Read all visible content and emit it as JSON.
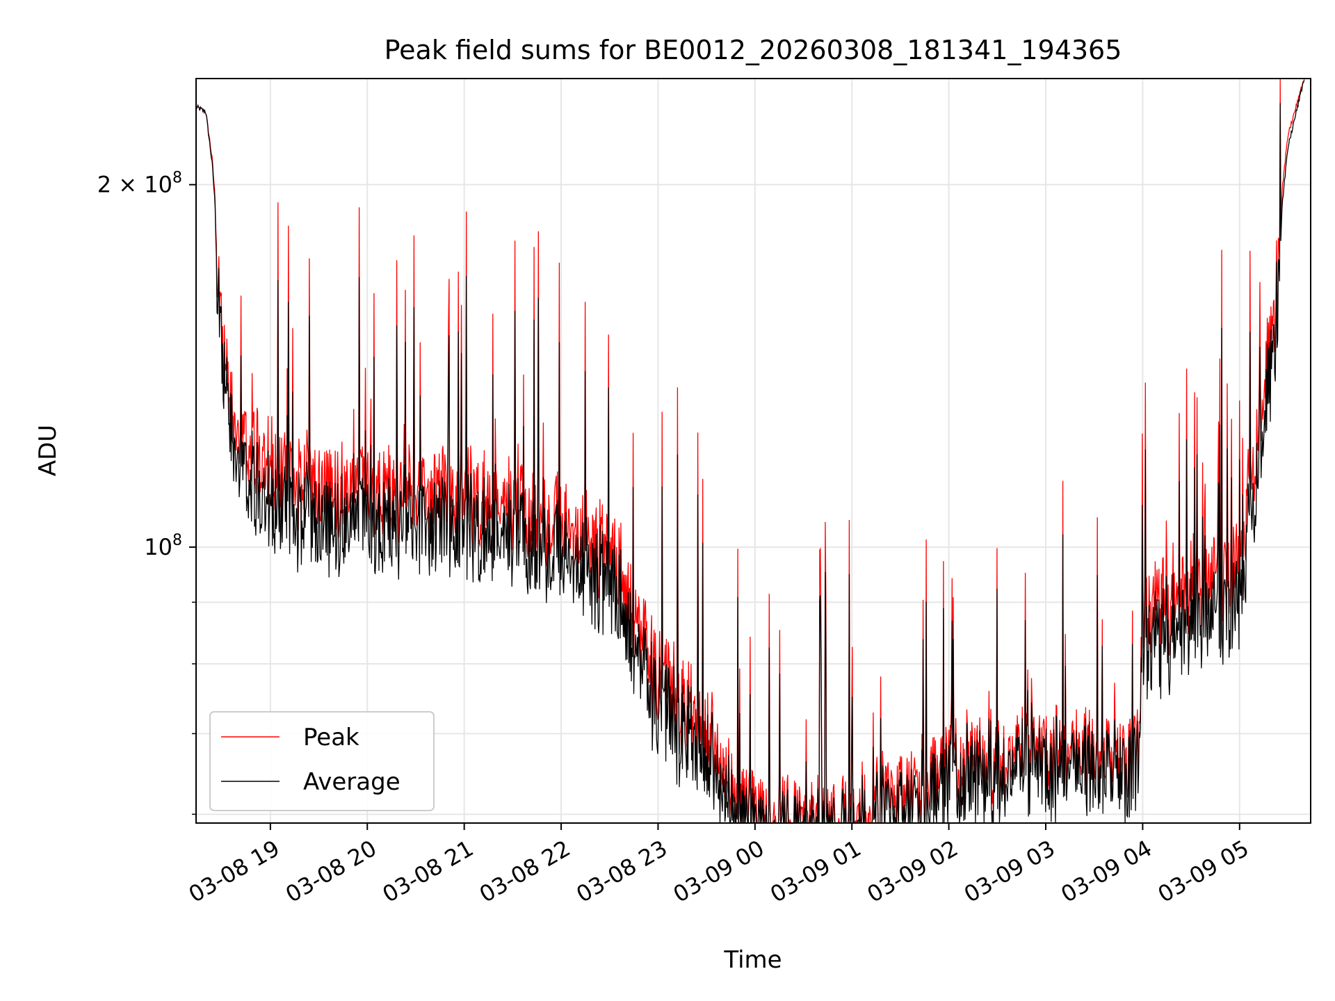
{
  "chart_data": {
    "type": "line",
    "title": "Peak field sums for BE0012_20260308_181341_194365",
    "xlabel": "Time",
    "ylabel": "ADU",
    "x_ticks": [
      "03-08 19",
      "03-08 20",
      "03-08 21",
      "03-08 22",
      "03-08 23",
      "03-09 00",
      "03-09 01",
      "03-09 02",
      "03-09 03",
      "03-09 04",
      "03-09 05"
    ],
    "y_ticks": [
      {
        "value": 100000000,
        "mantissa": "",
        "exponent": "8"
      },
      {
        "value": 200000000,
        "mantissa": "2",
        "exponent": "8"
      }
    ],
    "y_scale": "log",
    "xlim": [
      "2026-03-08 18:14",
      "2026-03-09 05:44"
    ],
    "ylim": [
      59000000,
      245000000
    ],
    "grid": true,
    "legend": "lower-left",
    "series": [
      {
        "name": "Peak",
        "color": "#ff0000",
        "points": [
          [
            "2026-03-08 18:14",
            232000000
          ],
          [
            "2026-03-08 18:20",
            230000000
          ],
          [
            "2026-03-08 18:24",
            210000000
          ],
          [
            "2026-03-08 18:27",
            185000000
          ],
          [
            "2026-03-08 18:32",
            150000000
          ],
          [
            "2026-03-08 18:40",
            136000000
          ],
          [
            "2026-03-08 18:50",
            130000000
          ],
          [
            "2026-03-08 19:00",
            125000000
          ],
          [
            "2026-03-08 19:30",
            122000000
          ],
          [
            "2026-03-08 20:00",
            121000000
          ],
          [
            "2026-03-08 20:30",
            120000000
          ],
          [
            "2026-03-08 21:00",
            120000000
          ],
          [
            "2026-03-08 21:30",
            117000000
          ],
          [
            "2026-03-08 22:00",
            113000000
          ],
          [
            "2026-03-08 22:30",
            108000000
          ],
          [
            "2026-03-08 22:45",
            96000000
          ],
          [
            "2026-03-08 23:00",
            84000000
          ],
          [
            "2026-03-08 23:30",
            78000000
          ],
          [
            "2026-03-08 23:45",
            70000000
          ],
          [
            "2026-03-09 00:00",
            64000000
          ],
          [
            "2026-03-09 00:30",
            64000000
          ],
          [
            "2026-03-09 01:00",
            65000000
          ],
          [
            "2026-03-09 01:30",
            68000000
          ],
          [
            "2026-03-09 02:00",
            71000000
          ],
          [
            "2026-03-09 02:30",
            72000000
          ],
          [
            "2026-03-09 03:00",
            73000000
          ],
          [
            "2026-03-09 03:30",
            73000000
          ],
          [
            "2026-03-09 03:58",
            73000000
          ],
          [
            "2026-03-09 04:00",
            95000000
          ],
          [
            "2026-03-09 04:30",
            100000000
          ],
          [
            "2026-03-09 05:00",
            105000000
          ],
          [
            "2026-03-09 05:10",
            130000000
          ],
          [
            "2026-03-09 05:20",
            165000000
          ],
          [
            "2026-03-09 05:30",
            220000000
          ],
          [
            "2026-03-09 05:40",
            245000000
          ]
        ]
      },
      {
        "name": "Average",
        "color": "#000000",
        "points": [
          [
            "2026-03-08 18:14",
            232000000
          ],
          [
            "2026-03-08 18:20",
            230000000
          ],
          [
            "2026-03-08 18:24",
            208000000
          ],
          [
            "2026-03-08 18:27",
            182000000
          ],
          [
            "2026-03-08 18:32",
            145000000
          ],
          [
            "2026-03-08 18:40",
            130000000
          ],
          [
            "2026-03-08 18:50",
            122000000
          ],
          [
            "2026-03-08 19:00",
            117000000
          ],
          [
            "2026-03-08 19:30",
            115000000
          ],
          [
            "2026-03-08 20:00",
            114000000
          ],
          [
            "2026-03-08 20:30",
            114000000
          ],
          [
            "2026-03-08 21:00",
            114000000
          ],
          [
            "2026-03-08 21:30",
            111000000
          ],
          [
            "2026-03-08 22:00",
            107000000
          ],
          [
            "2026-03-08 22:30",
            103000000
          ],
          [
            "2026-03-08 22:45",
            91000000
          ],
          [
            "2026-03-08 23:00",
            80000000
          ],
          [
            "2026-03-08 23:30",
            75000000
          ],
          [
            "2026-03-08 23:45",
            68000000
          ],
          [
            "2026-03-09 00:00",
            62000000
          ],
          [
            "2026-03-09 00:30",
            62500000
          ],
          [
            "2026-03-09 01:00",
            63500000
          ],
          [
            "2026-03-09 01:30",
            66000000
          ],
          [
            "2026-03-09 02:00",
            69000000
          ],
          [
            "2026-03-09 02:30",
            70500000
          ],
          [
            "2026-03-09 03:00",
            71500000
          ],
          [
            "2026-03-09 03:30",
            71500000
          ],
          [
            "2026-03-09 03:58",
            71500000
          ],
          [
            "2026-03-09 04:00",
            90000000
          ],
          [
            "2026-03-09 04:30",
            94000000
          ],
          [
            "2026-03-09 05:00",
            98000000
          ],
          [
            "2026-03-09 05:10",
            122000000
          ],
          [
            "2026-03-09 05:20",
            158000000
          ],
          [
            "2026-03-09 05:30",
            215000000
          ],
          [
            "2026-03-09 05:40",
            245000000
          ]
        ]
      }
    ]
  }
}
